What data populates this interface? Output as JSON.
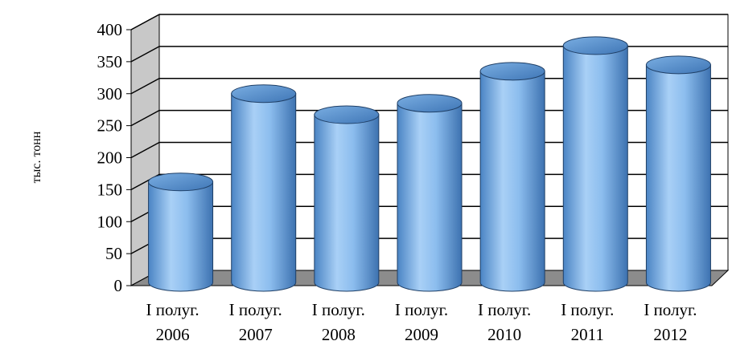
{
  "chart_data": {
    "type": "bar",
    "style": "3d-cylinder",
    "ylabel": "тыс. тонн",
    "xlabel": "",
    "title": "",
    "ylim": [
      0,
      400
    ],
    "yticks": [
      0,
      50,
      100,
      150,
      200,
      250,
      300,
      350,
      400
    ],
    "categories": [
      [
        "I полуг.",
        "2006"
      ],
      [
        "I полуг.",
        "2007"
      ],
      [
        "I полуг.",
        "2008"
      ],
      [
        "I полуг.",
        "2009"
      ],
      [
        "I полуг.",
        "2010"
      ],
      [
        "I полуг.",
        "2011"
      ],
      [
        "I полуг.",
        "2012"
      ]
    ],
    "values": [
      152,
      290,
      257,
      275,
      325,
      365,
      335
    ],
    "grid": true,
    "legend": "none",
    "colors": {
      "bar": "#7fb2e6",
      "bar_dark": "#3f78b8",
      "floor": "#8c8c8c"
    }
  }
}
